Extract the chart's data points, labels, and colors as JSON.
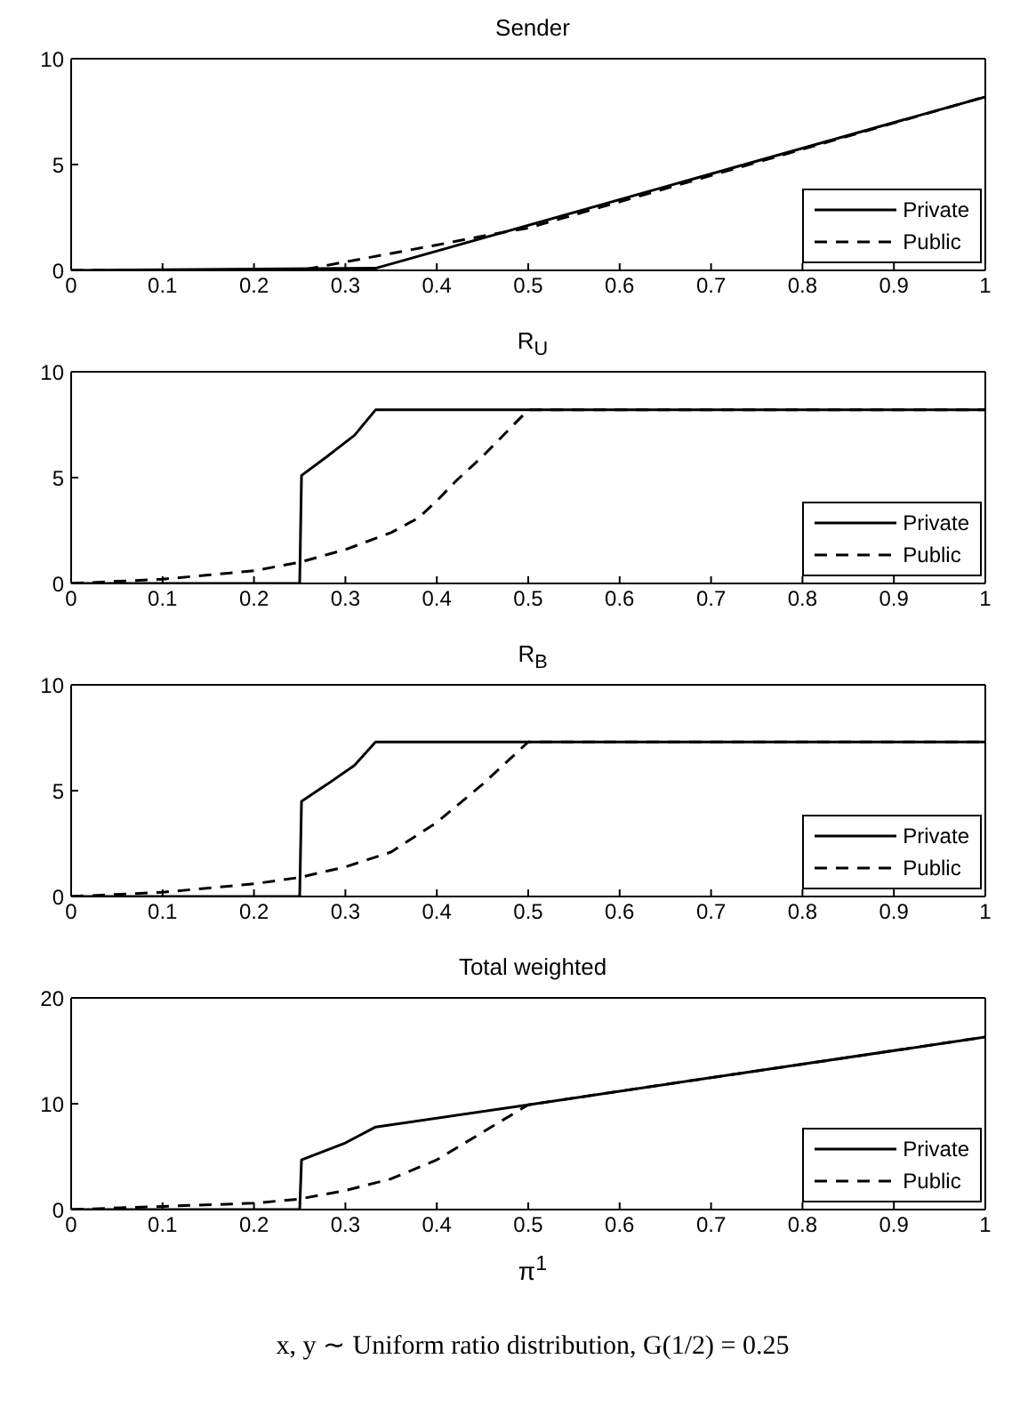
{
  "chart_data": [
    {
      "type": "line",
      "title": "Sender",
      "xlim": [
        0,
        1
      ],
      "xticks": [
        0,
        0.1,
        0.2,
        0.3,
        0.4,
        0.5,
        0.6,
        0.7,
        0.8,
        0.9,
        1
      ],
      "ylim": [
        0,
        10
      ],
      "yticks": [
        0,
        5,
        10
      ],
      "legend": "bottom right",
      "grid": false,
      "marker": "none",
      "series": [
        {
          "name": "Private",
          "color": "#000000",
          "line_style": "solid",
          "x": [
            0,
            0.333,
            1
          ],
          "values": [
            0,
            0.1,
            8.2
          ]
        },
        {
          "name": "Public",
          "color": "#000000",
          "line_style": "dashed",
          "x": [
            0,
            0.25,
            0.3,
            0.4,
            0.46,
            0.5,
            1
          ],
          "values": [
            0,
            0,
            0.4,
            1.2,
            1.7,
            2.0,
            8.2
          ]
        }
      ]
    },
    {
      "type": "line",
      "title": "R$_{U}$",
      "xlim": [
        0,
        1
      ],
      "xticks": [
        0,
        0.1,
        0.2,
        0.3,
        0.4,
        0.5,
        0.6,
        0.7,
        0.8,
        0.9,
        1
      ],
      "ylim": [
        0,
        10
      ],
      "yticks": [
        0,
        5,
        10
      ],
      "legend": "bottom right",
      "grid": false,
      "marker": "none",
      "series": [
        {
          "name": "Private",
          "color": "#000000",
          "line_style": "solid",
          "x": [
            0,
            0.25,
            0.252,
            0.28,
            0.31,
            0.333,
            1
          ],
          "values": [
            0,
            0,
            5.1,
            6.0,
            7.0,
            8.2,
            8.2
          ]
        },
        {
          "name": "Public",
          "color": "#000000",
          "line_style": "dashed",
          "x": [
            0,
            0.05,
            0.1,
            0.15,
            0.2,
            0.25,
            0.3,
            0.35,
            0.38,
            0.4,
            0.42,
            0.45,
            0.5,
            1
          ],
          "values": [
            0,
            0.1,
            0.2,
            0.4,
            0.6,
            1.0,
            1.6,
            2.4,
            3.1,
            3.9,
            4.8,
            6.0,
            8.2,
            8.2
          ]
        }
      ]
    },
    {
      "type": "line",
      "title": "R$_{B}$",
      "xlim": [
        0,
        1
      ],
      "xticks": [
        0,
        0.1,
        0.2,
        0.3,
        0.4,
        0.5,
        0.6,
        0.7,
        0.8,
        0.9,
        1
      ],
      "ylim": [
        0,
        10
      ],
      "yticks": [
        0,
        5,
        10
      ],
      "legend": "bottom right",
      "grid": false,
      "marker": "none",
      "series": [
        {
          "name": "Private",
          "color": "#000000",
          "line_style": "solid",
          "x": [
            0,
            0.25,
            0.252,
            0.28,
            0.31,
            0.333,
            1
          ],
          "values": [
            0,
            0,
            4.5,
            5.3,
            6.2,
            7.3,
            7.3
          ]
        },
        {
          "name": "Public",
          "color": "#000000",
          "line_style": "dashed",
          "x": [
            0,
            0.1,
            0.2,
            0.25,
            0.3,
            0.35,
            0.4,
            0.45,
            0.5,
            1
          ],
          "values": [
            0,
            0.2,
            0.6,
            0.9,
            1.4,
            2.1,
            3.5,
            5.3,
            7.3,
            7.3
          ]
        }
      ]
    },
    {
      "type": "line",
      "title": "Total weighted",
      "xlabel": "π$^{1}$",
      "annotations": [
        "x, y ∼ Uniform ratio distribution, G(1/2) = 0.25"
      ],
      "xlim": [
        0,
        1
      ],
      "xticks": [
        0,
        0.1,
        0.2,
        0.3,
        0.4,
        0.5,
        0.6,
        0.7,
        0.8,
        0.9,
        1
      ],
      "ylim": [
        0,
        20
      ],
      "yticks": [
        0,
        10,
        20
      ],
      "legend": "bottom right",
      "grid": false,
      "marker": "none",
      "series": [
        {
          "name": "Private",
          "color": "#000000",
          "line_style": "solid",
          "x": [
            0,
            0.25,
            0.252,
            0.3,
            0.333,
            0.5,
            1
          ],
          "values": [
            0,
            0,
            4.7,
            6.3,
            7.8,
            9.9,
            16.3
          ]
        },
        {
          "name": "Public",
          "color": "#000000",
          "line_style": "dashed",
          "x": [
            0,
            0.1,
            0.2,
            0.25,
            0.3,
            0.35,
            0.4,
            0.45,
            0.5,
            1
          ],
          "values": [
            0,
            0.3,
            0.6,
            1.0,
            1.8,
            2.9,
            4.7,
            7.3,
            9.9,
            16.3
          ]
        }
      ]
    }
  ]
}
